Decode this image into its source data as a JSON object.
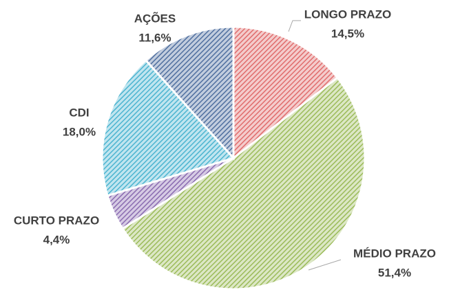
{
  "chart_data": {
    "type": "pie",
    "categories": [
      "LONGO PRAZO",
      "MÉDIO PRAZO",
      "CURTO PRAZO",
      "CDI",
      "AÇÕES"
    ],
    "values": [
      14.5,
      51.4,
      4.4,
      18.0,
      11.6
    ],
    "value_labels": [
      "14,5%",
      "51,4%",
      "4,4%",
      "18,0%",
      "11,6%"
    ],
    "colors": [
      "#e06c6c",
      "#9bbb59",
      "#8a6bb0",
      "#4bb4d0",
      "#4f6f9f"
    ]
  }
}
